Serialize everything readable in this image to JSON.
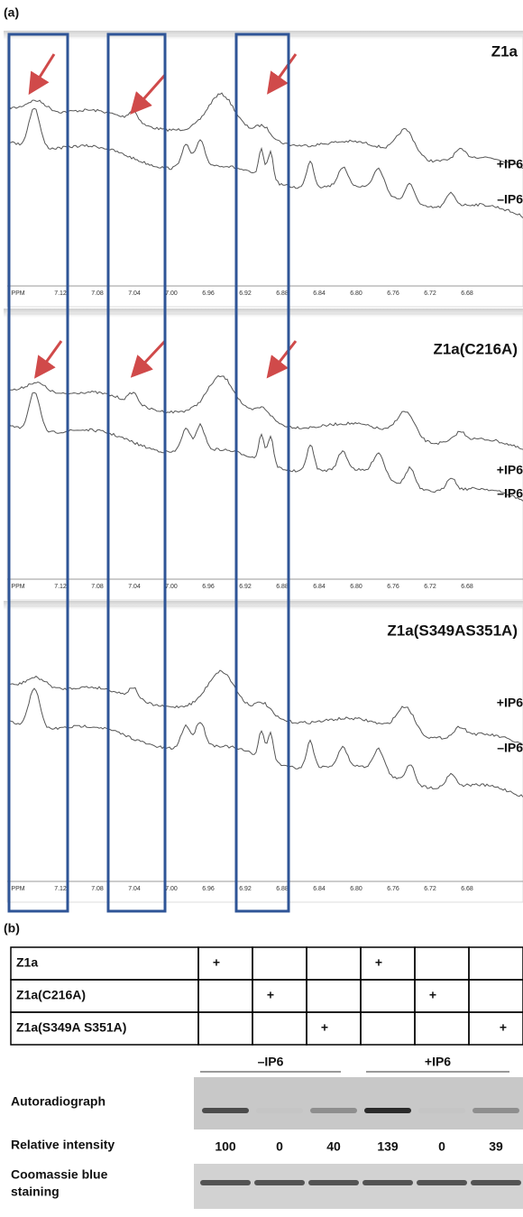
{
  "panel_a": {
    "label": "(a)",
    "spectra": [
      {
        "title": "Z1a",
        "traces": [
          "+IP6",
          "–IP6"
        ]
      },
      {
        "title": "Z1a(C216A)",
        "traces": [
          "+IP6",
          "–IP6"
        ]
      },
      {
        "title": "Z1a(S349AS351A)",
        "traces": [
          "+IP6",
          "–IP6"
        ]
      }
    ],
    "axis_labels": [
      "PPM",
      "7.12",
      "7.08",
      "7.04",
      "7.00",
      "6.96",
      "6.92",
      "6.88",
      "6.84",
      "6.80",
      "6.76",
      "6.72",
      "6.68"
    ]
  },
  "panel_b": {
    "label": "(b)",
    "table": {
      "rows": [
        [
          "Z1a",
          "+",
          null,
          null,
          "+",
          null,
          null
        ],
        [
          "Z1a(C216A)",
          null,
          "+",
          null,
          null,
          "+",
          null
        ],
        [
          "Z1a(S349A S351A)",
          null,
          null,
          "+",
          null,
          null,
          "+"
        ]
      ]
    },
    "groups": [
      "–IP6",
      "+IP6"
    ],
    "autoradiograph": "Autoradiograph",
    "relative_intensity": {
      "label": "Relative intensity",
      "values": [
        100,
        0,
        40,
        139,
        0,
        39
      ]
    },
    "coomassie": [
      "Coomassie blue",
      "staining"
    ]
  }
}
